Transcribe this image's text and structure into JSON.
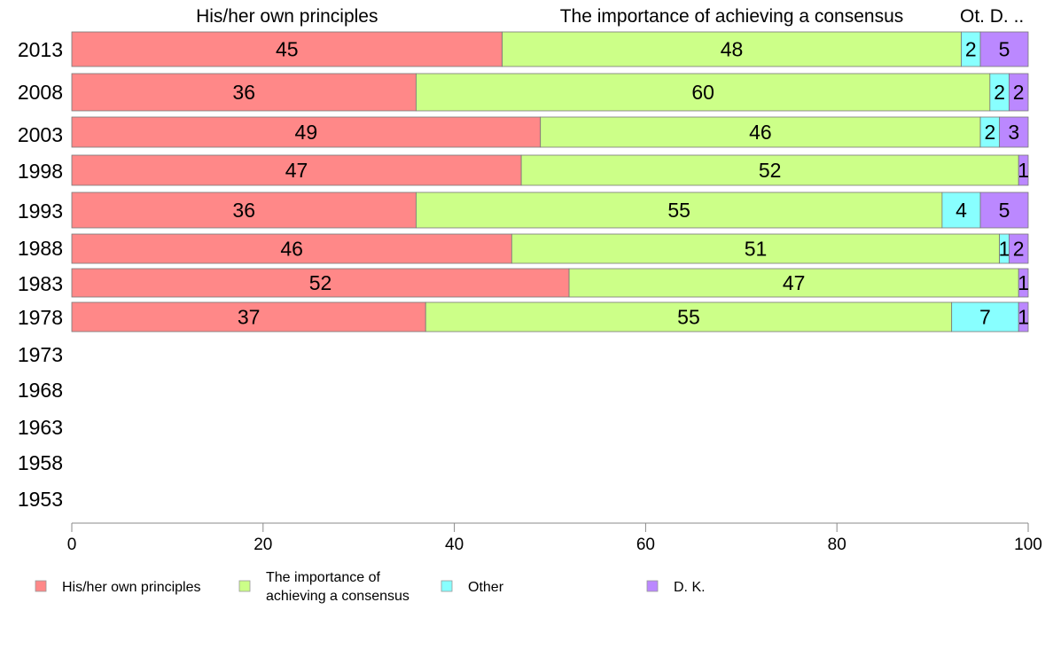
{
  "chart_data": {
    "type": "bar",
    "orientation": "horizontal",
    "stacked": true,
    "title": "",
    "xlabel": "",
    "ylabel": "",
    "xlim": [
      0,
      100
    ],
    "xticks": [
      0,
      20,
      40,
      60,
      80,
      100
    ],
    "grid": false,
    "legend_position": "bottom",
    "categories": [
      "2013",
      "2008",
      "2003",
      "1998",
      "1993",
      "1988",
      "1983",
      "1978",
      "1973",
      "1968",
      "1963",
      "1958",
      "1953"
    ],
    "column_headers": [
      "His/her own principles",
      "The importance of achieving a consensus",
      "Ot.",
      "D. .."
    ],
    "series": [
      {
        "name": "His/her own principles",
        "color": "#FF8888",
        "values": [
          45,
          36,
          49,
          47,
          36,
          46,
          52,
          37,
          null,
          null,
          null,
          null,
          null
        ]
      },
      {
        "name": "The importance of achieving a consensus",
        "legend_lines": [
          "The importance of",
          "achieving a consensus"
        ],
        "color": "#CCFF88",
        "values": [
          48,
          60,
          46,
          52,
          55,
          51,
          47,
          55,
          null,
          null,
          null,
          null,
          null
        ]
      },
      {
        "name": "Other",
        "color": "#88FFFF",
        "values": [
          2,
          2,
          2,
          0,
          4,
          1,
          0,
          7,
          null,
          null,
          null,
          null,
          null
        ]
      },
      {
        "name": "D. K.",
        "color": "#BB88FF",
        "values": [
          5,
          2,
          3,
          1,
          5,
          2,
          1,
          1,
          null,
          null,
          null,
          null,
          null
        ]
      }
    ]
  }
}
